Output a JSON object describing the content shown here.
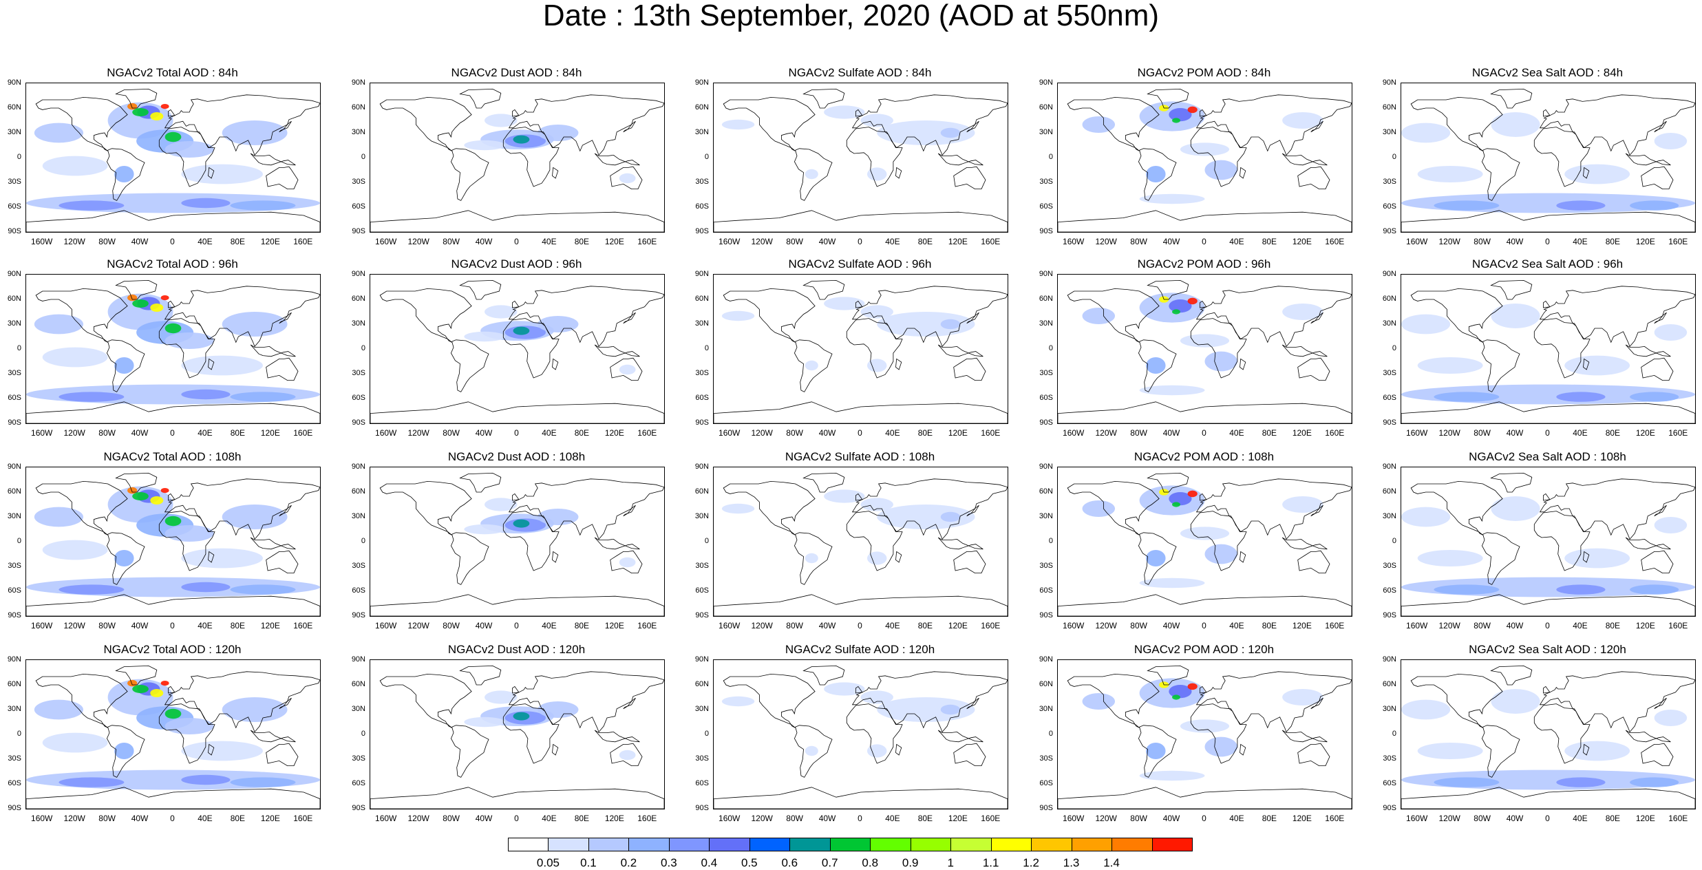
{
  "title": "Date : 13th September, 2020 (AOD at 550nm)",
  "panels": [
    {
      "title": "NGACv2 Total AOD : 84h",
      "field": "total"
    },
    {
      "title": "NGACv2 Dust AOD : 84h",
      "field": "dust"
    },
    {
      "title": "NGACv2 Sulfate AOD : 84h",
      "field": "sulfate"
    },
    {
      "title": "NGACv2 POM AOD : 84h",
      "field": "pom"
    },
    {
      "title": "NGACv2 Sea Salt AOD : 84h",
      "field": "seasalt"
    },
    {
      "title": "NGACv2 Total AOD : 96h",
      "field": "total"
    },
    {
      "title": "NGACv2 Dust AOD : 96h",
      "field": "dust"
    },
    {
      "title": "NGACv2 Sulfate AOD : 96h",
      "field": "sulfate"
    },
    {
      "title": "NGACv2 POM AOD : 96h",
      "field": "pom"
    },
    {
      "title": "NGACv2 Sea Salt AOD : 96h",
      "field": "seasalt"
    },
    {
      "title": "NGACv2 Total AOD : 108h",
      "field": "total"
    },
    {
      "title": "NGACv2 Dust AOD : 108h",
      "field": "dust"
    },
    {
      "title": "NGACv2 Sulfate AOD : 108h",
      "field": "sulfate"
    },
    {
      "title": "NGACv2 POM AOD : 108h",
      "field": "pom"
    },
    {
      "title": "NGACv2 Sea Salt AOD : 108h",
      "field": "seasalt"
    },
    {
      "title": "NGACv2 Total AOD : 120h",
      "field": "total"
    },
    {
      "title": "NGACv2 Dust AOD : 120h",
      "field": "dust"
    },
    {
      "title": "NGACv2 Sulfate AOD : 120h",
      "field": "sulfate"
    },
    {
      "title": "NGACv2 POM AOD : 120h",
      "field": "pom"
    },
    {
      "title": "NGACv2 Sea Salt  AOD : 120h",
      "field": "seasalt"
    }
  ],
  "lat_labels": [
    "90N",
    "60N",
    "30N",
    "0",
    "30S",
    "60S",
    "90S"
  ],
  "lon_labels": [
    "160W",
    "120W",
    "80W",
    "40W",
    "0",
    "40E",
    "80E",
    "120E",
    "160E"
  ],
  "lon_values": [
    -160,
    -120,
    -80,
    -40,
    0,
    40,
    80,
    120,
    160
  ],
  "lat_values": [
    90,
    60,
    30,
    0,
    -30,
    -60,
    -90
  ],
  "colorbar": {
    "colors": [
      "#ffffff",
      "#d6e2ff",
      "#b5c9ff",
      "#8eb2ff",
      "#7f96ff",
      "#6370f8",
      "#0063ff",
      "#009696",
      "#00c633",
      "#63ff00",
      "#96ff00",
      "#c6ff33",
      "#ffff00",
      "#ffc600",
      "#ffa000",
      "#ff7c00",
      "#ff1900"
    ],
    "labels": [
      "0.05",
      "0.1",
      "0.2",
      "0.3",
      "0.4",
      "0.5",
      "0.6",
      "0.7",
      "0.8",
      "0.9",
      "1",
      "1.1",
      "1.2",
      "1.3",
      "1.4"
    ]
  }
}
